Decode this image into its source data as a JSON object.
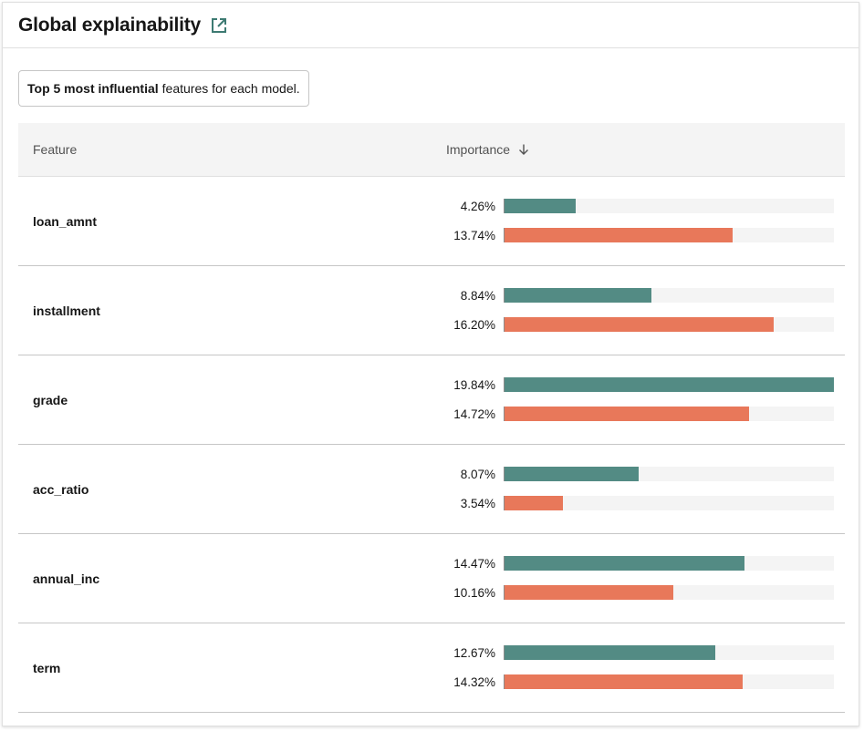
{
  "panel": {
    "title": "Global explainability",
    "launch_icon": "launch-icon"
  },
  "caption": {
    "bold": "Top 5 most influential",
    "rest": "features for each model."
  },
  "table": {
    "columns": {
      "feature": "Feature",
      "importance": "Importance",
      "sort_icon": "arrow-down-icon"
    },
    "max_value": 19.84,
    "colors": {
      "model_a": "#538b84",
      "model_b": "#e8785a",
      "track": "#f4f4f4"
    },
    "rows": [
      {
        "feature": "loan_amnt",
        "a": {
          "value": 4.26,
          "label": "4.26%"
        },
        "b": {
          "value": 13.74,
          "label": "13.74%"
        }
      },
      {
        "feature": "installment",
        "a": {
          "value": 8.84,
          "label": "8.84%"
        },
        "b": {
          "value": 16.2,
          "label": "16.20%"
        }
      },
      {
        "feature": "grade",
        "a": {
          "value": 19.84,
          "label": "19.84%"
        },
        "b": {
          "value": 14.72,
          "label": "14.72%"
        }
      },
      {
        "feature": "acc_ratio",
        "a": {
          "value": 8.07,
          "label": "8.07%"
        },
        "b": {
          "value": 3.54,
          "label": "3.54%"
        }
      },
      {
        "feature": "annual_inc",
        "a": {
          "value": 14.47,
          "label": "14.47%"
        },
        "b": {
          "value": 10.16,
          "label": "10.16%"
        }
      },
      {
        "feature": "term",
        "a": {
          "value": 12.67,
          "label": "12.67%"
        },
        "b": {
          "value": 14.32,
          "label": "14.32%"
        }
      }
    ]
  }
}
